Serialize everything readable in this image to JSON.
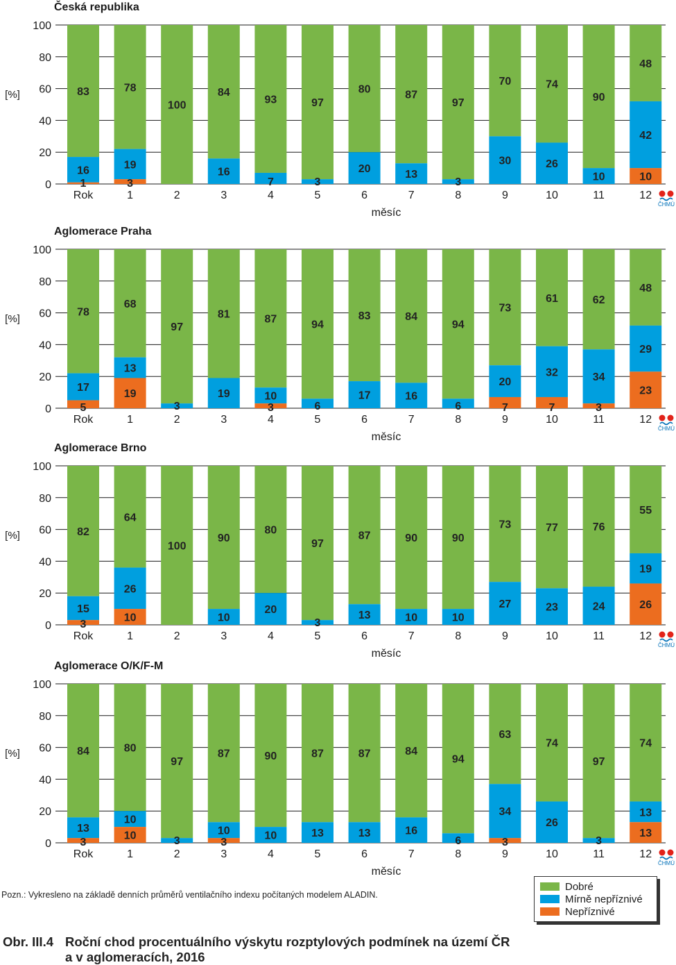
{
  "colors": {
    "good": "#7ab648",
    "moderate": "#009fdf",
    "bad": "#ec6d1f",
    "grid": "#1a1a1a",
    "text": "#1a1a1a"
  },
  "legend": {
    "good": "Dobré",
    "moderate": "Mírně nepříznivé",
    "bad": "Nepříznivé"
  },
  "logo_text": "ČHMÚ",
  "note": "Pozn.: Vykresleno na základě denních průměrů ventilačního indexu počítaných modelem ALADIN.",
  "caption": {
    "label": "Obr. III.4",
    "line1": "Roční chod procentuálního výskytu rozptylových podmínek na území ČR",
    "line2": "a v aglomeracích, 2016"
  },
  "chart_data": [
    {
      "type": "bar",
      "stacked": true,
      "title": "Česká republika",
      "xlabel": "měsíc",
      "ylabel": "[%]",
      "ylim": [
        0,
        100
      ],
      "yticks": [
        0,
        20,
        40,
        60,
        80,
        100
      ],
      "categories": [
        "Rok",
        "1",
        "2",
        "3",
        "4",
        "5",
        "6",
        "7",
        "8",
        "9",
        "10",
        "11",
        "12"
      ],
      "series": [
        {
          "name": "Nepříznivé",
          "key": "bad",
          "values": [
            1,
            3,
            0,
            0,
            0,
            0,
            0,
            0,
            0,
            0,
            0,
            0,
            10
          ]
        },
        {
          "name": "Mírně nepříznivé",
          "key": "moderate",
          "values": [
            16,
            19,
            0,
            16,
            7,
            3,
            20,
            13,
            3,
            30,
            26,
            10,
            42
          ]
        },
        {
          "name": "Dobré",
          "key": "good",
          "values": [
            83,
            78,
            100,
            84,
            93,
            97,
            80,
            87,
            97,
            70,
            74,
            90,
            48
          ]
        }
      ]
    },
    {
      "type": "bar",
      "stacked": true,
      "title": "Aglomerace Praha",
      "xlabel": "měsíc",
      "ylabel": "[%]",
      "ylim": [
        0,
        100
      ],
      "yticks": [
        0,
        20,
        40,
        60,
        80,
        100
      ],
      "categories": [
        "Rok",
        "1",
        "2",
        "3",
        "4",
        "5",
        "6",
        "7",
        "8",
        "9",
        "10",
        "11",
        "12"
      ],
      "series": [
        {
          "name": "Nepříznivé",
          "key": "bad",
          "values": [
            5,
            19,
            0,
            0,
            3,
            0,
            0,
            0,
            0,
            7,
            7,
            3,
            23
          ]
        },
        {
          "name": "Mírně nepříznivé",
          "key": "moderate",
          "values": [
            17,
            13,
            3,
            19,
            10,
            6,
            17,
            16,
            6,
            20,
            32,
            34,
            29
          ]
        },
        {
          "name": "Dobré",
          "key": "good",
          "values": [
            78,
            68,
            97,
            81,
            87,
            94,
            83,
            84,
            94,
            73,
            61,
            62,
            48
          ]
        }
      ]
    },
    {
      "type": "bar",
      "stacked": true,
      "title": "Aglomerace Brno",
      "xlabel": "měsíc",
      "ylabel": "[%]",
      "ylim": [
        0,
        100
      ],
      "yticks": [
        0,
        20,
        40,
        60,
        80,
        100
      ],
      "categories": [
        "Rok",
        "1",
        "2",
        "3",
        "4",
        "5",
        "6",
        "7",
        "8",
        "9",
        "10",
        "11",
        "12"
      ],
      "series": [
        {
          "name": "Nepříznivé",
          "key": "bad",
          "values": [
            3,
            10,
            0,
            0,
            0,
            0,
            0,
            0,
            0,
            0,
            0,
            0,
            26
          ]
        },
        {
          "name": "Mírně nepříznivé",
          "key": "moderate",
          "values": [
            15,
            26,
            0,
            10,
            20,
            3,
            13,
            10,
            10,
            27,
            23,
            24,
            19
          ]
        },
        {
          "name": "Dobré",
          "key": "good",
          "values": [
            82,
            64,
            100,
            90,
            80,
            97,
            87,
            90,
            90,
            73,
            77,
            76,
            55
          ]
        }
      ]
    },
    {
      "type": "bar",
      "stacked": true,
      "title": "Aglomerace O/K/F-M",
      "xlabel": "měsíc",
      "ylabel": "[%]",
      "ylim": [
        0,
        100
      ],
      "yticks": [
        0,
        20,
        40,
        60,
        80,
        100
      ],
      "categories": [
        "Rok",
        "1",
        "2",
        "3",
        "4",
        "5",
        "6",
        "7",
        "8",
        "9",
        "10",
        "11",
        "12"
      ],
      "series": [
        {
          "name": "Nepříznivé",
          "key": "bad",
          "values": [
            3,
            10,
            0,
            3,
            0,
            0,
            0,
            0,
            0,
            3,
            0,
            0,
            13
          ]
        },
        {
          "name": "Mírně nepříznivé",
          "key": "moderate",
          "values": [
            13,
            10,
            3,
            10,
            10,
            13,
            13,
            16,
            6,
            34,
            26,
            3,
            13
          ]
        },
        {
          "name": "Dobré",
          "key": "good",
          "values": [
            84,
            80,
            97,
            87,
            90,
            87,
            87,
            84,
            94,
            63,
            74,
            97,
            74
          ]
        }
      ]
    }
  ]
}
